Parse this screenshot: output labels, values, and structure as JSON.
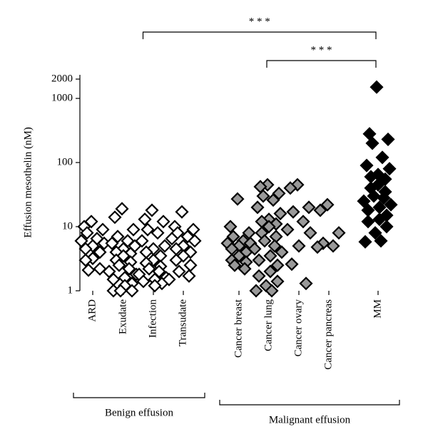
{
  "chart_data": {
    "type": "strip",
    "y_label": "Effusion mesothelin (nM)",
    "log_y": true,
    "ylim": [
      1,
      2000
    ],
    "yticks": [
      1,
      10,
      100,
      1000,
      2000
    ],
    "categories": [
      "ARD",
      "Exudate",
      "Infection",
      "Transudate",
      "Cancer breast",
      "Cancer lung",
      "Cancer ovary",
      "Cancer pancreas",
      "MM"
    ],
    "marker_fill": [
      "#ffffff",
      "#ffffff",
      "#ffffff",
      "#ffffff",
      "#999999",
      "#999999",
      "#999999",
      "#999999",
      "#000000"
    ],
    "marker_edge": "#000000",
    "values": [
      [
        12,
        10,
        9,
        8,
        6.5,
        6,
        5.5,
        5,
        4.5,
        4,
        3.2,
        3,
        2.2,
        2.1
      ],
      [
        19,
        14,
        9,
        7,
        6,
        5.5,
        5,
        4.5,
        4,
        3.8,
        3.5,
        3,
        2.8,
        2.5,
        2.2,
        2,
        1.8,
        1.6,
        1.5,
        1.3,
        1.2,
        1,
        1,
        1
      ],
      [
        18,
        13,
        12,
        9,
        8,
        6,
        5,
        4.5,
        4,
        3.5,
        3,
        2.7,
        2.4,
        2.2,
        2,
        1.8,
        1.6,
        1.5,
        1.4,
        1.3,
        1.2
      ],
      [
        17,
        10,
        9,
        8,
        7,
        6.5,
        6,
        5,
        4.5,
        4,
        3.5,
        3,
        2.5,
        2,
        1.7,
        1.5
      ],
      [
        27,
        10,
        8,
        7,
        6,
        5.5,
        5.5,
        5,
        4.5,
        4,
        3.5,
        3,
        2.8,
        2.5,
        2.2
      ],
      [
        45,
        42,
        33,
        30,
        26,
        20,
        16,
        13,
        12,
        11,
        10,
        8,
        7,
        6,
        5,
        4.5,
        4,
        3.5,
        3,
        2.5,
        2,
        1.7,
        1.4,
        1.2,
        1,
        1
      ],
      [
        45,
        40,
        20,
        17,
        12,
        9,
        8,
        5,
        2.6,
        1.3
      ],
      [
        22,
        18,
        8,
        5.5,
        5,
        4.8
      ],
      [
        1500,
        280,
        230,
        200,
        120,
        90,
        80,
        65,
        60,
        55,
        45,
        40,
        35,
        30,
        28,
        25,
        22,
        20,
        18,
        15,
        13,
        12,
        10,
        8,
        6,
        5.8
      ]
    ],
    "groups": [
      {
        "name": "Benign effusion",
        "first": 0,
        "last": 3
      },
      {
        "name": "Malignant effusion",
        "first": 4,
        "last": 8
      }
    ],
    "comparisons": [
      {
        "label": "* * *",
        "from": "Benign effusion",
        "to": "MM"
      },
      {
        "label": "* * *",
        "from": "Cancer lung",
        "to": "MM"
      }
    ]
  }
}
